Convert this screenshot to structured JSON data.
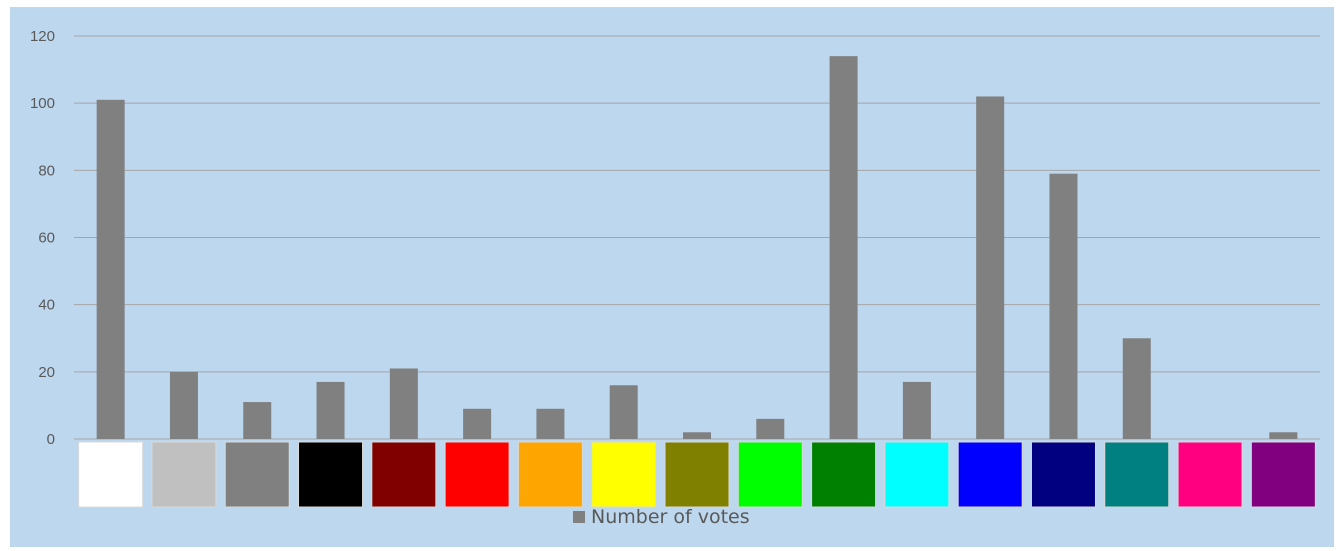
{
  "chart_data": {
    "type": "bar",
    "categories": [
      "white",
      "silver",
      "gray",
      "black",
      "maroon",
      "red",
      "orange",
      "yellow",
      "olive",
      "lime",
      "green",
      "cyan",
      "blue",
      "navy",
      "teal",
      "pink",
      "purple"
    ],
    "category_colors": [
      "#ffffff",
      "#c0c0c0",
      "#808080",
      "#000000",
      "#800000",
      "#ff0000",
      "#ffa500",
      "#ffff00",
      "#808000",
      "#00ff00",
      "#008000",
      "#00ffff",
      "#0000ff",
      "#000080",
      "#008080",
      "#ff0080",
      "#800080"
    ],
    "series": [
      {
        "name": "Number of votes",
        "values": [
          101,
          20,
          11,
          17,
          21,
          9,
          9,
          16,
          2,
          6,
          114,
          17,
          102,
          79,
          30,
          0,
          2
        ],
        "color": "#808080"
      }
    ],
    "ylim": [
      0,
      120
    ],
    "yticks": [
      "0",
      "20",
      "40",
      "60",
      "80",
      "100",
      "120"
    ],
    "grid": true,
    "legend_position": "bottom",
    "background": "#bdd7ee"
  }
}
